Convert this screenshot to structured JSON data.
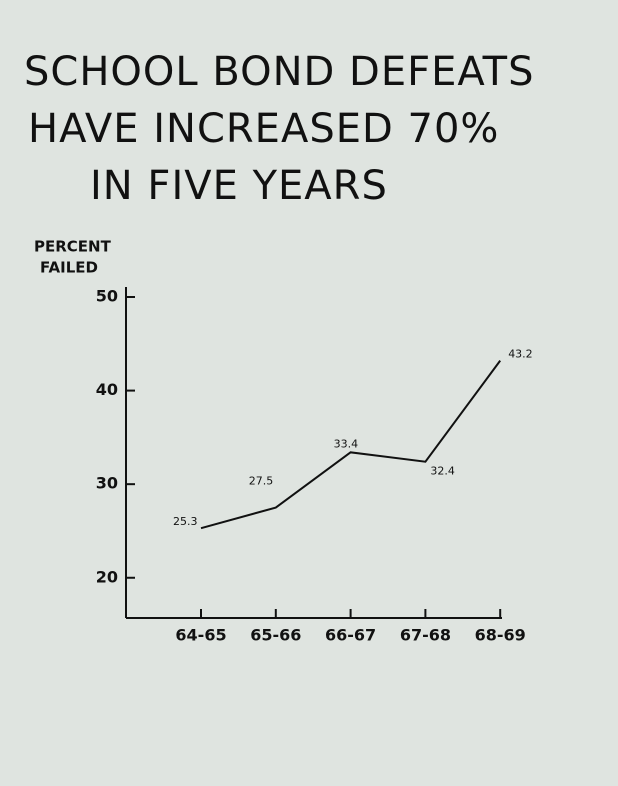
{
  "chart_data": {
    "type": "line",
    "title": [
      "SCHOOL BOND DEFEATS",
      "HAVE INCREASED 70%",
      "IN FIVE YEARS"
    ],
    "y_label": [
      "PERCENT",
      "FAILED"
    ],
    "categories": [
      "64-65",
      "65-66",
      "66-67",
      "67-68",
      "68-69"
    ],
    "values": [
      25.3,
      27.5,
      33.4,
      32.4,
      43.2
    ],
    "color": "#111111",
    "ylim": [
      15.7,
      50
    ],
    "yticks": [
      20,
      30,
      40,
      50
    ]
  }
}
